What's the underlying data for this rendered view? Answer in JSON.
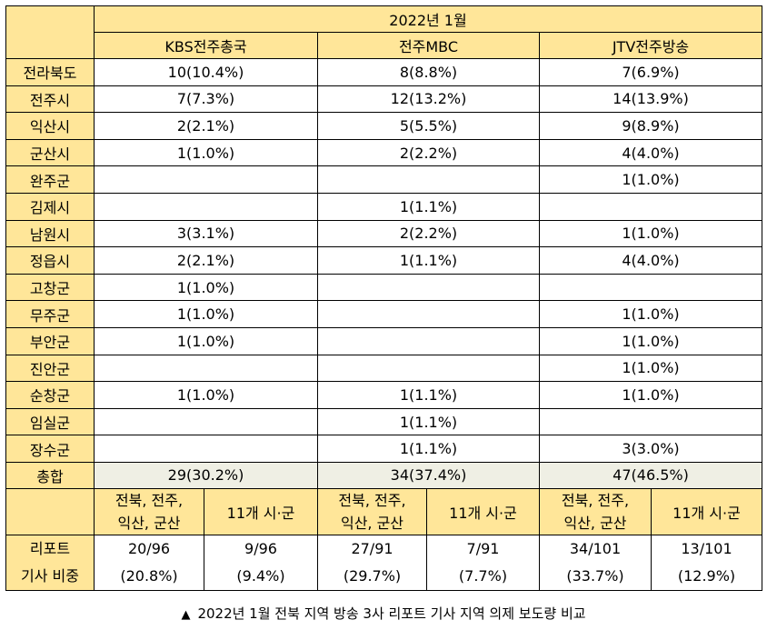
{
  "table": {
    "period": "2022년 1월",
    "stations": [
      "KBS전주총국",
      "전주MBC",
      "JTV전주방송"
    ],
    "rows": [
      {
        "region": "전라북도",
        "values": [
          "10(10.4%)",
          "8(8.8%)",
          "7(6.9%)"
        ]
      },
      {
        "region": "전주시",
        "values": [
          "7(7.3%)",
          "12(13.2%)",
          "14(13.9%)"
        ]
      },
      {
        "region": "익산시",
        "values": [
          "2(2.1%)",
          "5(5.5%)",
          "9(8.9%)"
        ]
      },
      {
        "region": "군산시",
        "values": [
          "1(1.0%)",
          "2(2.2%)",
          "4(4.0%)"
        ]
      },
      {
        "region": "완주군",
        "values": [
          "",
          "",
          "1(1.0%)"
        ]
      },
      {
        "region": "김제시",
        "values": [
          "",
          "1(1.1%)",
          ""
        ]
      },
      {
        "region": "남원시",
        "values": [
          "3(3.1%)",
          "2(2.2%)",
          "1(1.0%)"
        ]
      },
      {
        "region": "정읍시",
        "values": [
          "2(2.1%)",
          "1(1.1%)",
          "4(4.0%)"
        ]
      },
      {
        "region": "고창군",
        "values": [
          "1(1.0%)",
          "",
          ""
        ]
      },
      {
        "region": "무주군",
        "values": [
          "1(1.0%)",
          "",
          "1(1.0%)"
        ]
      },
      {
        "region": "부안군",
        "values": [
          "1(1.0%)",
          "",
          "1(1.0%)"
        ]
      },
      {
        "region": "진안군",
        "values": [
          "",
          "",
          "1(1.0%)"
        ]
      },
      {
        "region": "순창군",
        "values": [
          "1(1.0%)",
          "1(1.1%)",
          "1(1.0%)"
        ]
      },
      {
        "region": "임실군",
        "values": [
          "",
          "1(1.1%)",
          ""
        ]
      },
      {
        "region": "장수군",
        "values": [
          "",
          "1(1.1%)",
          "3(3.0%)"
        ]
      }
    ],
    "total": {
      "label": "총합",
      "values": [
        "29(30.2%)",
        "34(37.4%)",
        "47(46.5%)"
      ]
    },
    "subheaders": {
      "group_line1": "전북, 전주,",
      "group_line2": "익산, 군산",
      "other": "11개 시·군"
    },
    "footer": {
      "label_line1": "리포트",
      "label_line2": "기사 비중",
      "cells": [
        {
          "count": "20/96",
          "pct": "(20.8%)"
        },
        {
          "count": "9/96",
          "pct": "(9.4%)"
        },
        {
          "count": "27/91",
          "pct": "(29.7%)"
        },
        {
          "count": "7/91",
          "pct": "(7.7%)"
        },
        {
          "count": "34/101",
          "pct": "(33.7%)"
        },
        {
          "count": "13/101",
          "pct": "(12.9%)"
        }
      ]
    }
  },
  "caption": {
    "icon": "triangle-up-icon",
    "text": "2022년 1월 전북 지역 방송 3사 리포트 기사 지역 의제 보도량 비교"
  }
}
